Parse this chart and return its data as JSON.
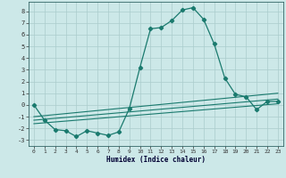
{
  "xlabel": "Humidex (Indice chaleur)",
  "ylabel": "",
  "xlim": [
    -0.5,
    23.5
  ],
  "ylim": [
    -3.5,
    8.8
  ],
  "xticks": [
    0,
    1,
    2,
    3,
    4,
    5,
    6,
    7,
    8,
    9,
    10,
    11,
    12,
    13,
    14,
    15,
    16,
    17,
    18,
    19,
    20,
    21,
    22,
    23
  ],
  "yticks": [
    -3,
    -2,
    -1,
    0,
    1,
    2,
    3,
    4,
    5,
    6,
    7,
    8
  ],
  "main_x": [
    0,
    1,
    2,
    3,
    4,
    5,
    6,
    7,
    8,
    9,
    10,
    11,
    12,
    13,
    14,
    15,
    16,
    17,
    18,
    19,
    20,
    21,
    22,
    23
  ],
  "main_y": [
    0,
    -1.3,
    -2.1,
    -2.2,
    -2.7,
    -2.2,
    -2.4,
    -2.6,
    -2.3,
    -0.3,
    3.2,
    6.5,
    6.6,
    7.2,
    8.1,
    8.3,
    7.3,
    5.2,
    2.3,
    0.9,
    0.7,
    -0.4,
    0.3,
    0.3
  ],
  "line1_x": [
    0,
    23
  ],
  "line1_y": [
    -1.0,
    1.0
  ],
  "line2_x": [
    0,
    23
  ],
  "line2_y": [
    -1.3,
    0.5
  ],
  "line3_x": [
    0,
    23
  ],
  "line3_y": [
    -1.6,
    0.1
  ],
  "color_main": "#1a7a6e",
  "color_bg": "#cce8e8",
  "color_grid": "#aacccc",
  "marker": "D",
  "markersize": 2.2,
  "linewidth": 0.9
}
